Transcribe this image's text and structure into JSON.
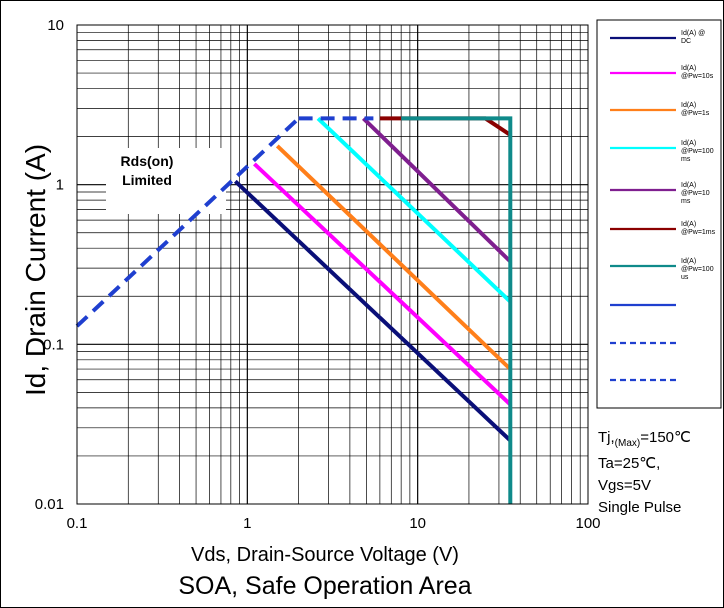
{
  "chart_data": {
    "type": "line",
    "title": "SOA, Safe Operation Area",
    "xlabel": "Vds, Drain-Source Voltage (V)",
    "ylabel": "Id, Drain Current (A)",
    "xscale": "log",
    "yscale": "log",
    "xlim": [
      0.1,
      100
    ],
    "ylim": [
      0.01,
      10
    ],
    "grid": true,
    "xticks": [
      "0.1",
      "1",
      "10",
      "100"
    ],
    "yticks": [
      "0.01",
      "0.1",
      "1",
      "10"
    ],
    "legend_position": "right",
    "annotation": [
      "Rds(on)",
      "Limited"
    ],
    "conditions": [
      {
        "main": "Tj,",
        "sub": "(Max)",
        "rest": "=150℃"
      },
      {
        "main": "Ta=25℃,"
      },
      {
        "main": "Vgs=5V"
      },
      {
        "main": "Single Pulse"
      }
    ],
    "rds_on_limit": {
      "x": [
        0.1,
        2.0
      ],
      "y": [
        0.13,
        2.6
      ],
      "color": "#1f3fcf",
      "dash": true
    },
    "series": [
      {
        "name": [
          "Id(A) @",
          "DC"
        ],
        "color": "#0a0f78",
        "x": [
          0.85,
          35
        ],
        "y": [
          1.05,
          0.025
        ]
      },
      {
        "name": [
          "Id(A)",
          "@Pw=10s"
        ],
        "color": "#ff00ff",
        "x": [
          1.1,
          35
        ],
        "y": [
          1.35,
          0.042
        ]
      },
      {
        "name": [
          "Id(A)",
          "@Pw=1s"
        ],
        "color": "#ff7f1a",
        "x": [
          1.5,
          35
        ],
        "y": [
          1.75,
          0.07
        ]
      },
      {
        "name": [
          "Id(A)",
          "@Pw=100",
          "ms"
        ],
        "color": "#00ffff",
        "x": [
          2.6,
          35
        ],
        "y": [
          2.6,
          0.185
        ]
      },
      {
        "name": [
          "Id(A)",
          "@Pw=10",
          "ms"
        ],
        "color": "#7f1f8f",
        "x": [
          4.8,
          35
        ],
        "y": [
          2.6,
          0.33
        ]
      },
      {
        "name": [
          "Id(A)",
          "@Pw=1ms"
        ],
        "color": "#8b0000",
        "x": [
          6.0,
          25,
          35
        ],
        "y": [
          2.6,
          2.6,
          2.05
        ]
      },
      {
        "name": [
          "Id(A)",
          "@Pw=100",
          "us"
        ],
        "color": "#0f8a8a",
        "x": [
          8.0,
          35,
          35
        ],
        "y": [
          2.6,
          2.6,
          0.01
        ]
      },
      {
        "name": [],
        "color": "#1f3fcf",
        "dash": false,
        "x": [],
        "y": []
      },
      {
        "name": [],
        "color": "#1f3fcf",
        "dash": true,
        "x": [],
        "y": []
      },
      {
        "name": [],
        "color": "#1f3fcf",
        "dash": true,
        "x": [],
        "y": []
      }
    ],
    "dashed_top": {
      "x": [
        2.0,
        5.5
      ],
      "y": [
        2.6,
        2.6
      ],
      "color": "#1f3fcf"
    }
  }
}
